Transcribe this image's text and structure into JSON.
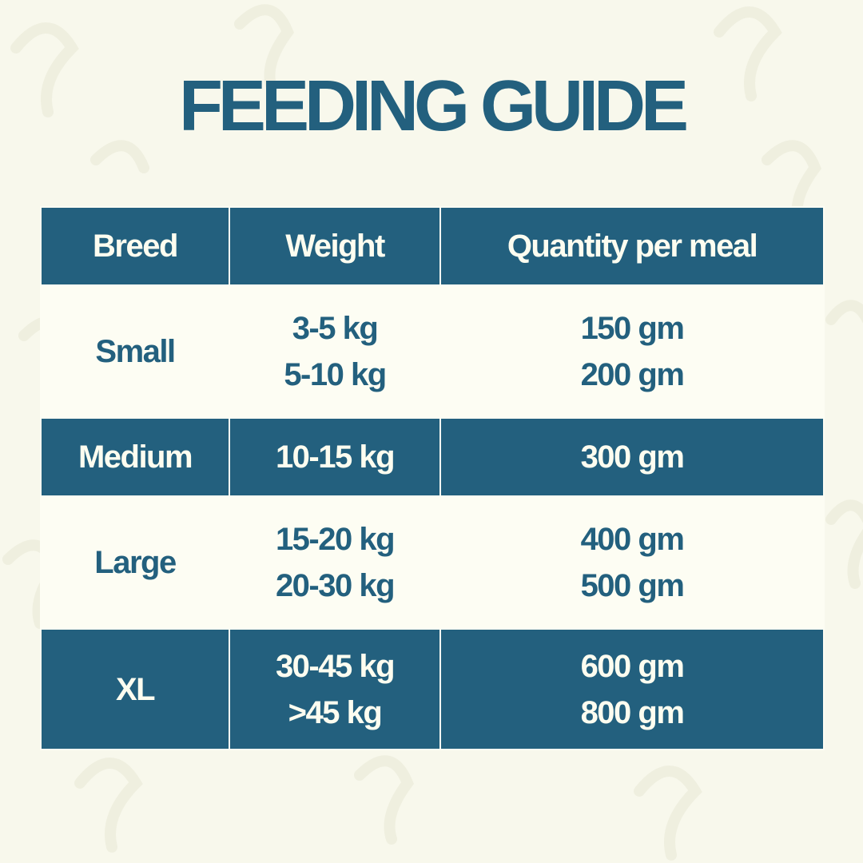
{
  "title": "FEEDING GUIDE",
  "colors": {
    "primary": "#23607e",
    "background": "#f8f8ec",
    "light_row": "#fdfdf3"
  },
  "table": {
    "headers": [
      "Breed",
      "Weight",
      "Quantity per meal"
    ],
    "rows": [
      {
        "breed": "Small",
        "weights": [
          "3-5 kg",
          "5-10 kg"
        ],
        "quantities": [
          "150 gm",
          "200 gm"
        ]
      },
      {
        "breed": "Medium",
        "weights": [
          "10-15 kg"
        ],
        "quantities": [
          "300 gm"
        ]
      },
      {
        "breed": "Large",
        "weights": [
          "15-20 kg",
          "20-30 kg"
        ],
        "quantities": [
          "400 gm",
          "500 gm"
        ]
      },
      {
        "breed": "XL",
        "weights": [
          "30-45 kg",
          ">45 kg"
        ],
        "quantities": [
          "600 gm",
          "800 gm"
        ]
      }
    ]
  }
}
